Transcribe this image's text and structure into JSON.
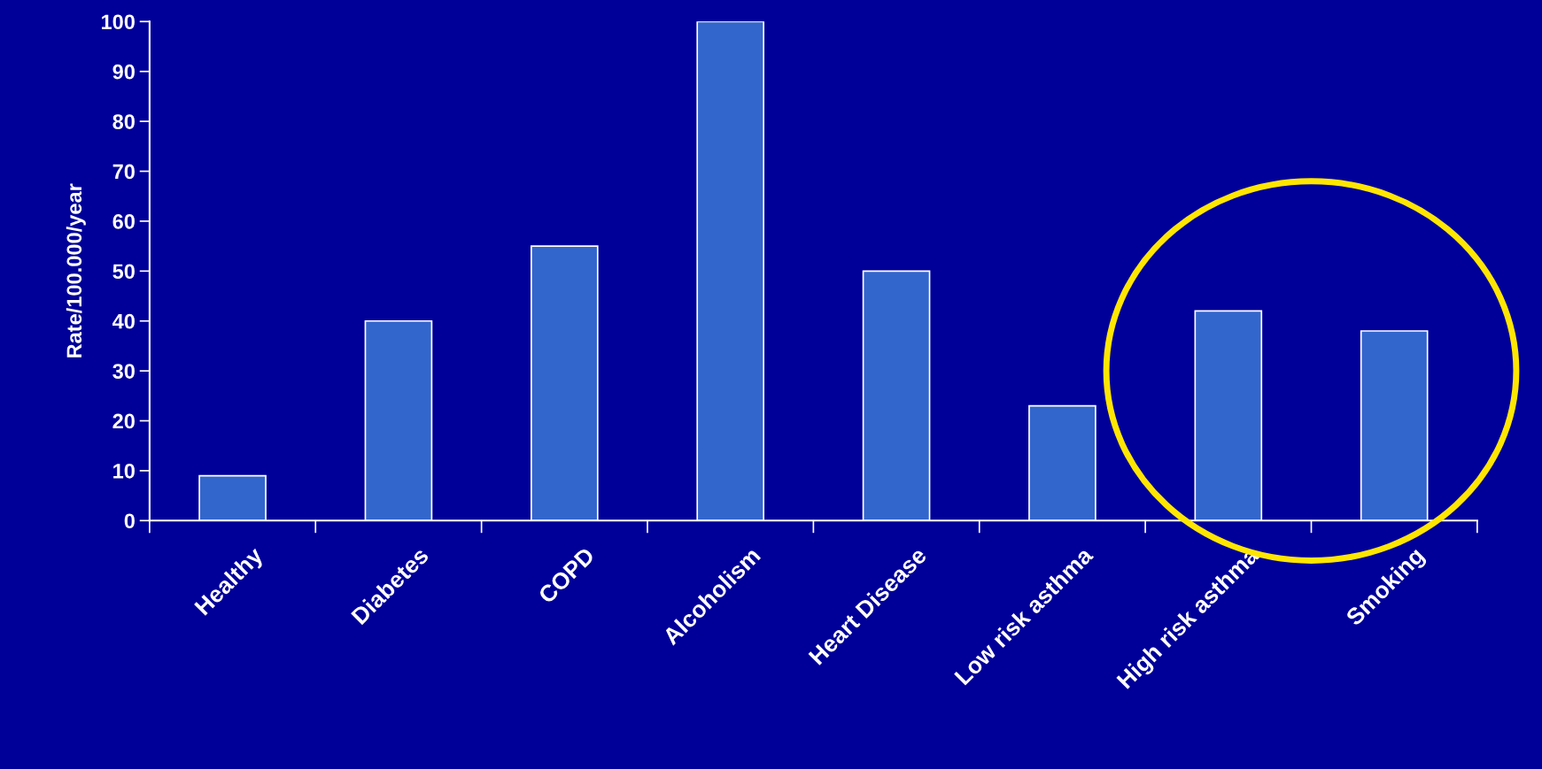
{
  "chart_data": {
    "type": "bar",
    "ylabel": "Rate/100.000/year",
    "categories": [
      "Healthy",
      "Diabetes",
      "COPD",
      "Alcoholism",
      "Heart Disease",
      "Low risk asthma",
      "High risk asthma",
      "Smoking"
    ],
    "values": [
      9,
      40,
      55,
      100,
      50,
      23,
      42,
      38
    ],
    "color": "#3366cc",
    "ylim": [
      0,
      100
    ],
    "yticks": [
      0,
      10,
      20,
      30,
      40,
      50,
      60,
      70,
      80,
      90,
      100
    ],
    "grid": false
  }
}
